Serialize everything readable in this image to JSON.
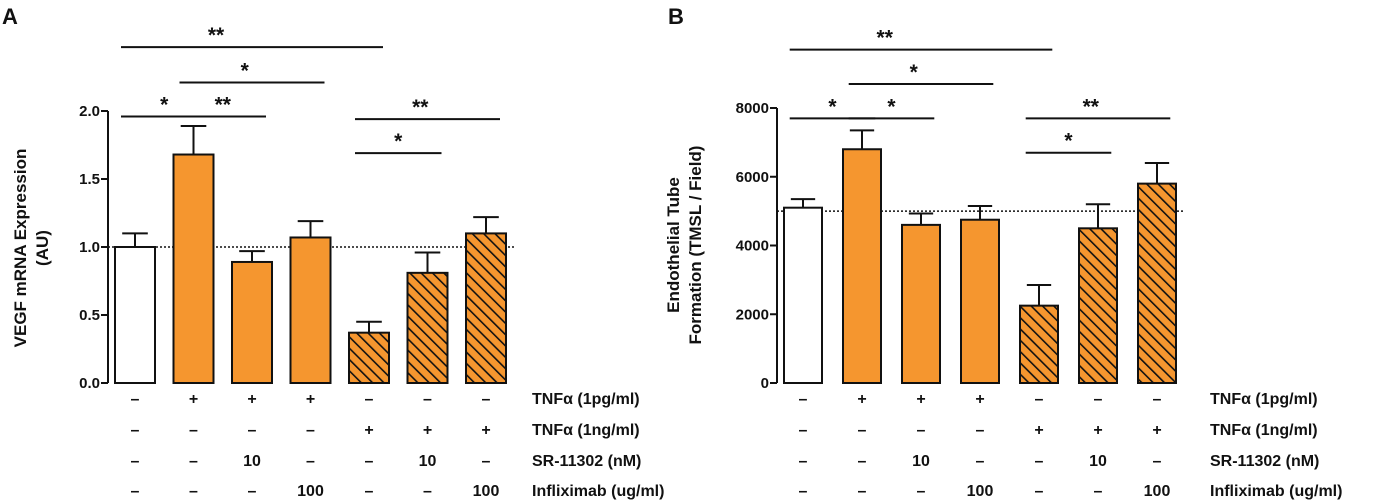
{
  "chart_data": [
    {
      "panel": "A",
      "type": "bar",
      "ylabel_lines": [
        "VEGF mRNA Expression",
        "(AU)"
      ],
      "ylim": [
        0,
        2.0
      ],
      "yticks": [
        "0.0",
        "0.5",
        "1.0",
        "1.5",
        "2.0"
      ],
      "yticks_values": [
        0,
        0.5,
        1.0,
        1.5,
        2.0
      ],
      "reference_line": 1.0,
      "values": [
        1.0,
        1.68,
        0.89,
        1.07,
        0.37,
        0.81,
        1.1
      ],
      "errors": [
        0.1,
        0.21,
        0.08,
        0.12,
        0.08,
        0.15,
        0.12
      ],
      "styles": [
        "white",
        "orange",
        "orange",
        "orange",
        "hatched",
        "hatched",
        "hatched"
      ],
      "significance": [
        {
          "from": 0,
          "to": 1,
          "label": "*",
          "y": 1.96
        },
        {
          "from": 1,
          "to": 2,
          "label": "**",
          "y": 1.96
        },
        {
          "from": 1,
          "to": 3,
          "label": "*",
          "y": 2.21
        },
        {
          "from": 0,
          "to": 4,
          "label": "**",
          "y": 2.47
        },
        {
          "from": 4,
          "to": 5,
          "label": "*",
          "y": 1.69
        },
        {
          "from": 4,
          "to": 6,
          "label": "**",
          "y": 1.94
        }
      ]
    },
    {
      "panel": "B",
      "type": "bar",
      "ylabel_lines": [
        "Endothelial Tube",
        "Formation (TMSL / Field)"
      ],
      "ylim": [
        0,
        8000
      ],
      "yticks": [
        "0",
        "2000",
        "4000",
        "6000",
        "8000"
      ],
      "yticks_values": [
        0,
        2000,
        4000,
        6000,
        8000
      ],
      "reference_line": 5000,
      "values": [
        5100,
        6800,
        4600,
        4750,
        2250,
        4500,
        5800
      ],
      "errors": [
        250,
        550,
        330,
        400,
        600,
        700,
        600
      ],
      "styles": [
        "white",
        "orange",
        "orange",
        "orange",
        "hatched",
        "hatched",
        "hatched"
      ],
      "significance": [
        {
          "from": 0,
          "to": 1,
          "label": "*",
          "y": 7700
        },
        {
          "from": 1,
          "to": 2,
          "label": "*",
          "y": 7700
        },
        {
          "from": 1,
          "to": 3,
          "label": "*",
          "y": 8700
        },
        {
          "from": 0,
          "to": 4,
          "label": "**",
          "y": 9700
        },
        {
          "from": 4,
          "to": 5,
          "label": "*",
          "y": 6700
        },
        {
          "from": 4,
          "to": 6,
          "label": "**",
          "y": 7700
        }
      ]
    }
  ],
  "conditions": {
    "rows": [
      {
        "label": "TNFα (1pg/ml)",
        "symbols": [
          "–",
          "+",
          "+",
          "+",
          "–",
          "–",
          "–"
        ]
      },
      {
        "label": "TNFα (1ng/ml)",
        "symbols": [
          "–",
          "–",
          "–",
          "–",
          "+",
          "+",
          "+"
        ]
      },
      {
        "label": "SR-11302 (nM)",
        "symbols": [
          "–",
          "–",
          "10",
          "–",
          "–",
          "10",
          "–"
        ]
      },
      {
        "label": "Infliximab (ug/ml)",
        "symbols": [
          "–",
          "–",
          "–",
          "100",
          "–",
          "–",
          "100"
        ]
      }
    ]
  },
  "colors": {
    "orange": "#F5962F",
    "white": "#ffffff",
    "edge": "#111111"
  }
}
